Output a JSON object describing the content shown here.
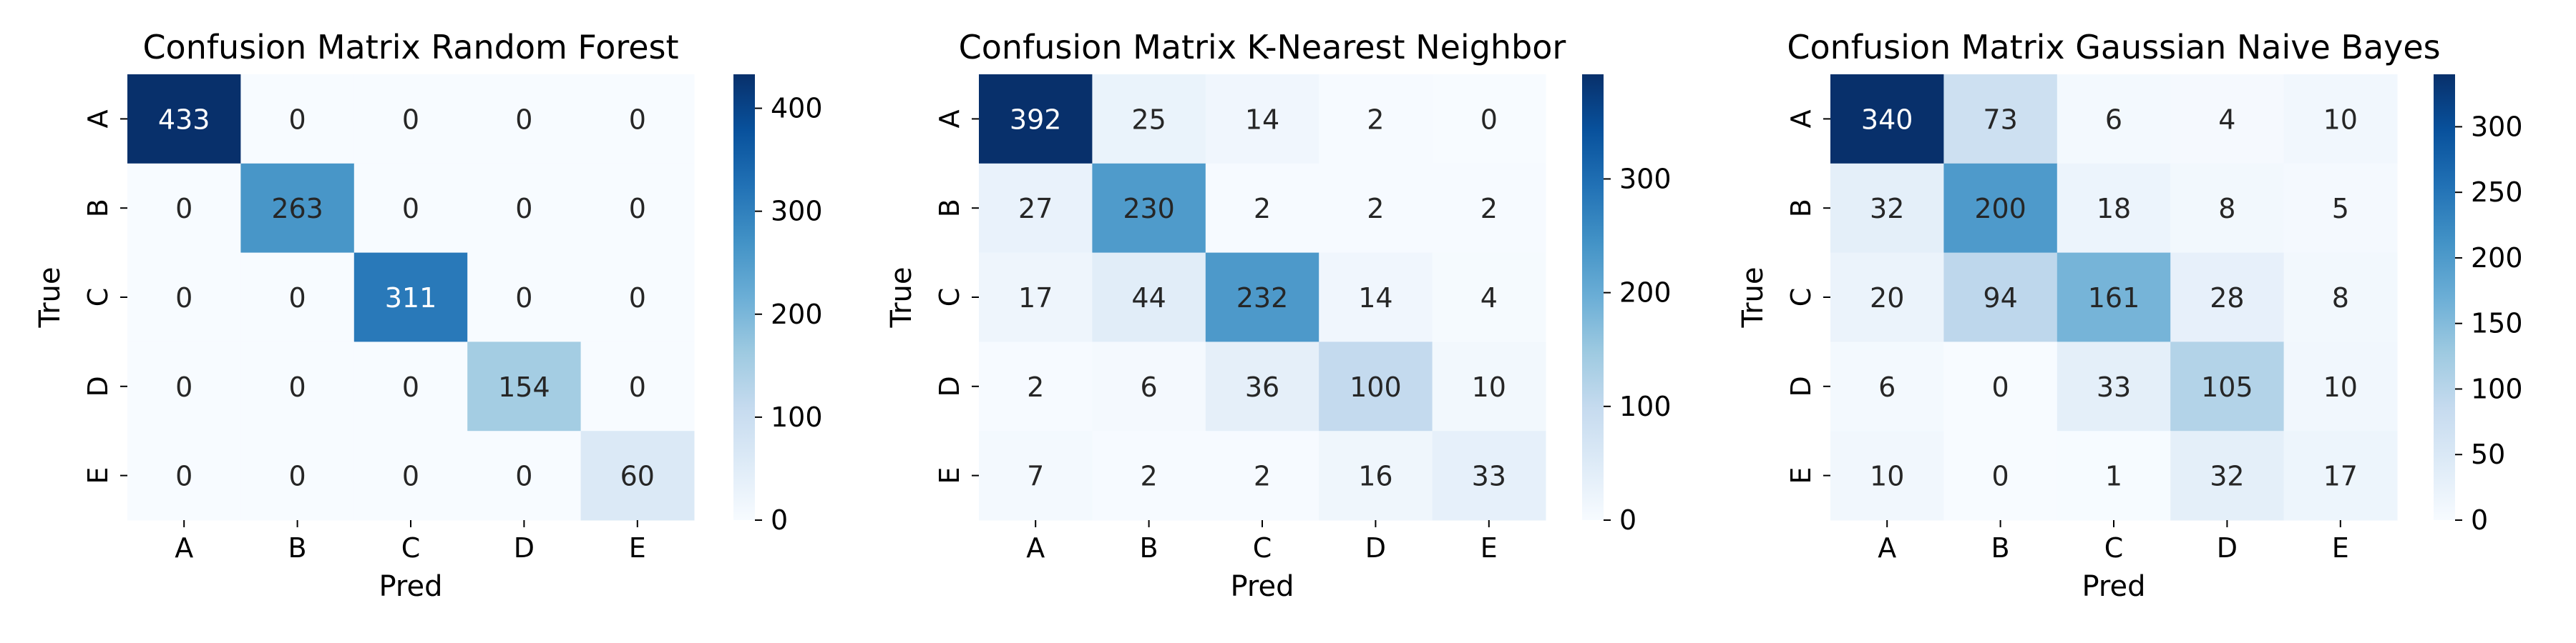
{
  "figure": {
    "cmap": {
      "stops": [
        "#f7fbff",
        "#deebf7",
        "#c6dbef",
        "#9ecae1",
        "#6baed6",
        "#4292c6",
        "#2171b5",
        "#08519c",
        "#08306b"
      ]
    },
    "text_dark": "#262626",
    "text_light": "#ffffff"
  },
  "chart_data": [
    {
      "type": "heatmap",
      "title": "Confusion Matrix Random Forest",
      "xlabel": "Pred",
      "ylabel": "True",
      "x_categories": [
        "A",
        "B",
        "C",
        "D",
        "E"
      ],
      "y_categories": [
        "A",
        "B",
        "C",
        "D",
        "E"
      ],
      "values": [
        [
          433,
          0,
          0,
          0,
          0
        ],
        [
          0,
          263,
          0,
          0,
          0
        ],
        [
          0,
          0,
          311,
          0,
          0
        ],
        [
          0,
          0,
          0,
          154,
          0
        ],
        [
          0,
          0,
          0,
          0,
          60
        ]
      ],
      "colorbar": {
        "min": 0,
        "max": 433,
        "ticks": [
          0,
          100,
          200,
          300,
          400
        ]
      }
    },
    {
      "type": "heatmap",
      "title": "Confusion Matrix K-Nearest Neighbor",
      "xlabel": "Pred",
      "ylabel": "True",
      "x_categories": [
        "A",
        "B",
        "C",
        "D",
        "E"
      ],
      "y_categories": [
        "A",
        "B",
        "C",
        "D",
        "E"
      ],
      "values": [
        [
          392,
          25,
          14,
          2,
          0
        ],
        [
          27,
          230,
          2,
          2,
          2
        ],
        [
          17,
          44,
          232,
          14,
          4
        ],
        [
          2,
          6,
          36,
          100,
          10
        ],
        [
          7,
          2,
          2,
          16,
          33
        ]
      ],
      "colorbar": {
        "min": 0,
        "max": 392,
        "ticks": [
          0,
          100,
          200,
          300
        ]
      }
    },
    {
      "type": "heatmap",
      "title": "Confusion Matrix Gaussian Naive Bayes",
      "xlabel": "Pred",
      "ylabel": "True",
      "x_categories": [
        "A",
        "B",
        "C",
        "D",
        "E"
      ],
      "y_categories": [
        "A",
        "B",
        "C",
        "D",
        "E"
      ],
      "values": [
        [
          340,
          73,
          6,
          4,
          10
        ],
        [
          32,
          200,
          18,
          8,
          5
        ],
        [
          20,
          94,
          161,
          28,
          8
        ],
        [
          6,
          0,
          33,
          105,
          10
        ],
        [
          10,
          0,
          1,
          32,
          17
        ]
      ],
      "colorbar": {
        "min": 0,
        "max": 340,
        "ticks": [
          0,
          50,
          100,
          150,
          200,
          250,
          300
        ]
      }
    }
  ]
}
